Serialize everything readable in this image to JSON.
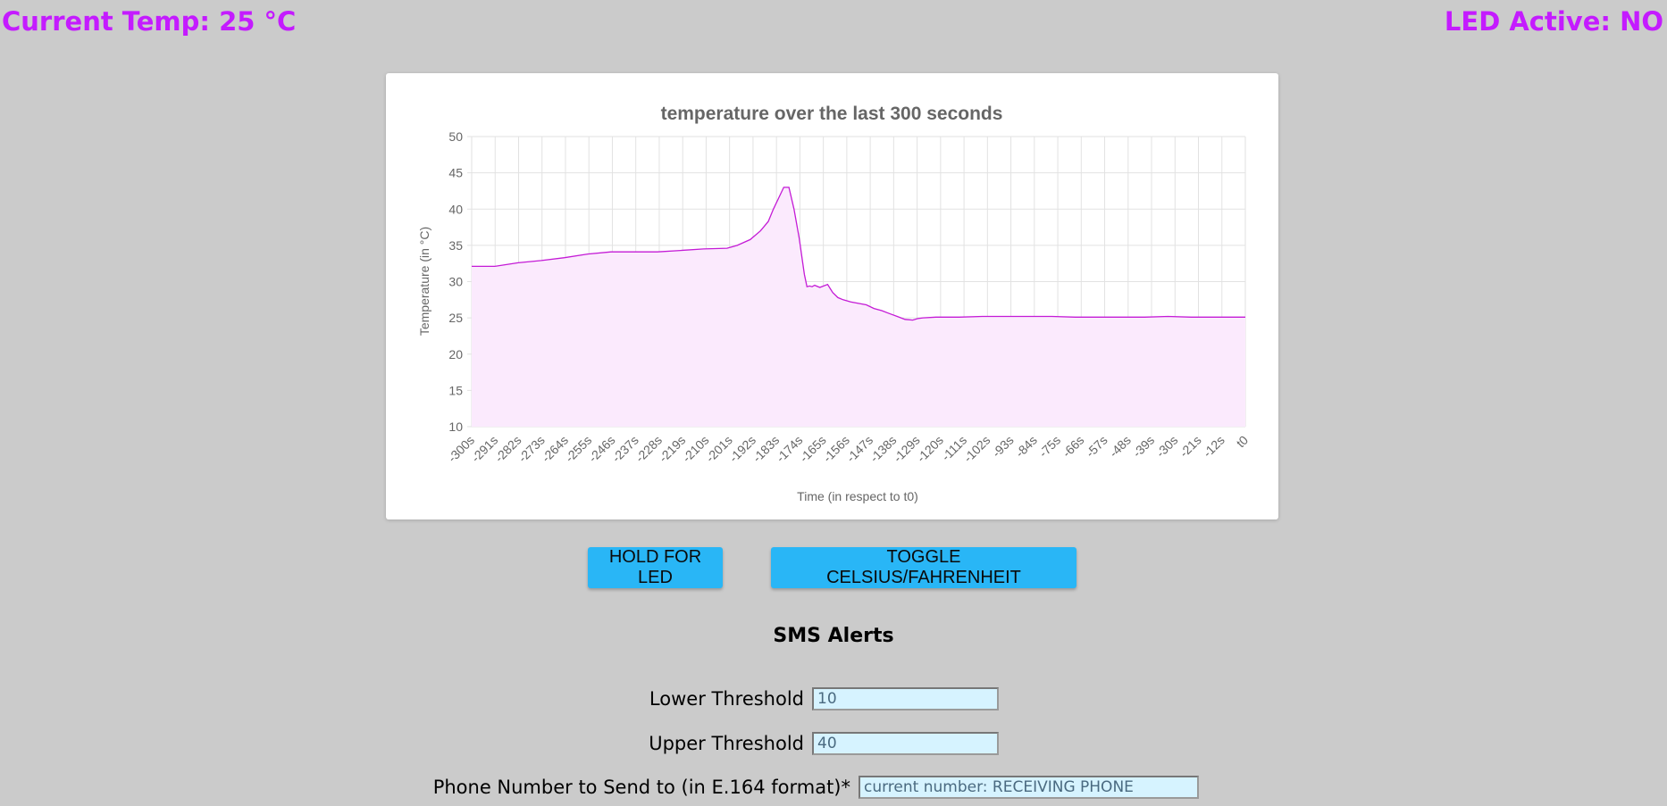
{
  "header": {
    "current_temp": "Current Temp: 25 °C",
    "led_active": "LED Active: NO"
  },
  "chart_data": {
    "type": "line",
    "title": "temperature over the last 300 seconds",
    "xlabel": "Time (in respect to t0)",
    "ylabel": "Temperature (in °C)",
    "ylim": [
      10,
      50
    ],
    "yticks": [
      50,
      45,
      40,
      35,
      30,
      25,
      20,
      15,
      10
    ],
    "grid": true,
    "line_color": "#c41bd6",
    "fill_color": "#fbeafd",
    "categories": [
      "-300s",
      "-291s",
      "-282s",
      "-273s",
      "-264s",
      "-255s",
      "-246s",
      "-237s",
      "-228s",
      "-219s",
      "-210s",
      "-201s",
      "-192s",
      "-183s",
      "-174s",
      "-165s",
      "-156s",
      "-147s",
      "-138s",
      "-129s",
      "-120s",
      "-111s",
      "-102s",
      "-93s",
      "-84s",
      "-75s",
      "-66s",
      "-57s",
      "-48s",
      "-39s",
      "-30s",
      "-21s",
      "-12s",
      "t0"
    ],
    "series": [
      {
        "x": [
          -300,
          -291,
          -282,
          -273,
          -264,
          -255,
          -246,
          -237,
          -228,
          -219,
          -210,
          -201,
          -197,
          -192,
          -188,
          -185,
          -183,
          -181,
          -179,
          -177,
          -175,
          -173,
          -171,
          -170,
          -169,
          -168,
          -167,
          -165,
          -162,
          -160,
          -158,
          -156,
          -153,
          -150,
          -147,
          -144,
          -141,
          -138,
          -135,
          -132,
          -129,
          -127,
          -125,
          -120,
          -111,
          -102,
          -93,
          -84,
          -75,
          -66,
          -57,
          -48,
          -39,
          -30,
          -21,
          -12,
          0
        ],
        "y": [
          32.1,
          32.1,
          32.6,
          32.9,
          33.3,
          33.8,
          34.1,
          34.1,
          34.1,
          34.3,
          34.5,
          34.6,
          35.0,
          35.8,
          37.0,
          38.3,
          40.0,
          41.5,
          43.0,
          43.0,
          40.0,
          36.0,
          31.0,
          29.3,
          29.4,
          29.3,
          29.5,
          29.2,
          29.6,
          28.5,
          27.8,
          27.5,
          27.2,
          27.0,
          26.8,
          26.3,
          26.0,
          25.6,
          25.2,
          24.8,
          24.7,
          24.9,
          25.0,
          25.1,
          25.1,
          25.2,
          25.2,
          25.2,
          25.2,
          25.1,
          25.1,
          25.1,
          25.1,
          25.2,
          25.1,
          25.1,
          25.1
        ]
      }
    ]
  },
  "buttons": {
    "led_label": "HOLD FOR LED",
    "toggle_label": "TOGGLE CELSIUS/FAHRENHEIT"
  },
  "sms": {
    "title": "SMS Alerts",
    "lower_label": "Lower Threshold",
    "lower_value": "10",
    "upper_label": "Upper Threshold",
    "upper_value": "40",
    "phone_label": "Phone Number to Send to (in E.164 format)*",
    "phone_placeholder": "current number: RECEIVING PHONE"
  }
}
